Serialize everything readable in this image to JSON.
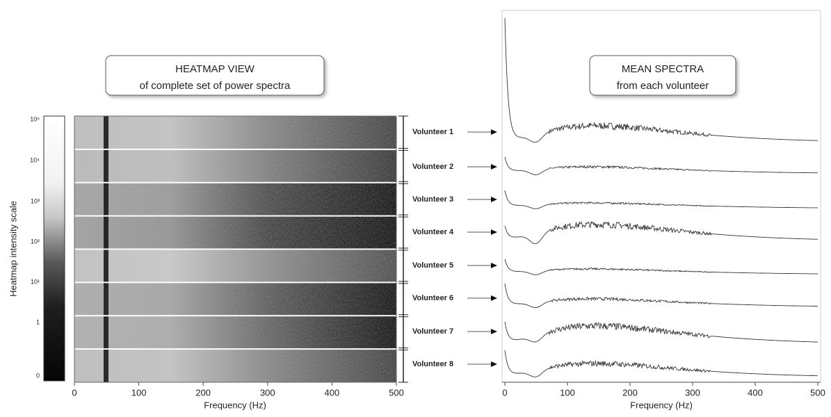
{
  "left_panel": {
    "title": "HEATMAP VIEW",
    "subtitle": "of complete set of power spectra",
    "colorbar_label": "Heatmap intensity scale",
    "colorbar_ticks": [
      "10⁵",
      "10⁴",
      "10³",
      "10²",
      "10¹",
      "1",
      "0"
    ],
    "x_ticks": [
      "0",
      "100",
      "200",
      "300",
      "400",
      "500"
    ],
    "x_label": "Frequency (Hz)"
  },
  "volunteers": [
    "Volunteer 1",
    "Volunteer 2",
    "Volunteer 3",
    "Volunteer 4",
    "Volunteer 5",
    "Volunteer 6",
    "Volunteer 7",
    "Volunteer 8"
  ],
  "right_panel": {
    "title": "MEAN SPECTRA",
    "subtitle": "from each volunteer",
    "x_ticks": [
      "0",
      "100",
      "200",
      "300",
      "400",
      "500"
    ],
    "x_label": "Frequency (Hz)"
  }
}
